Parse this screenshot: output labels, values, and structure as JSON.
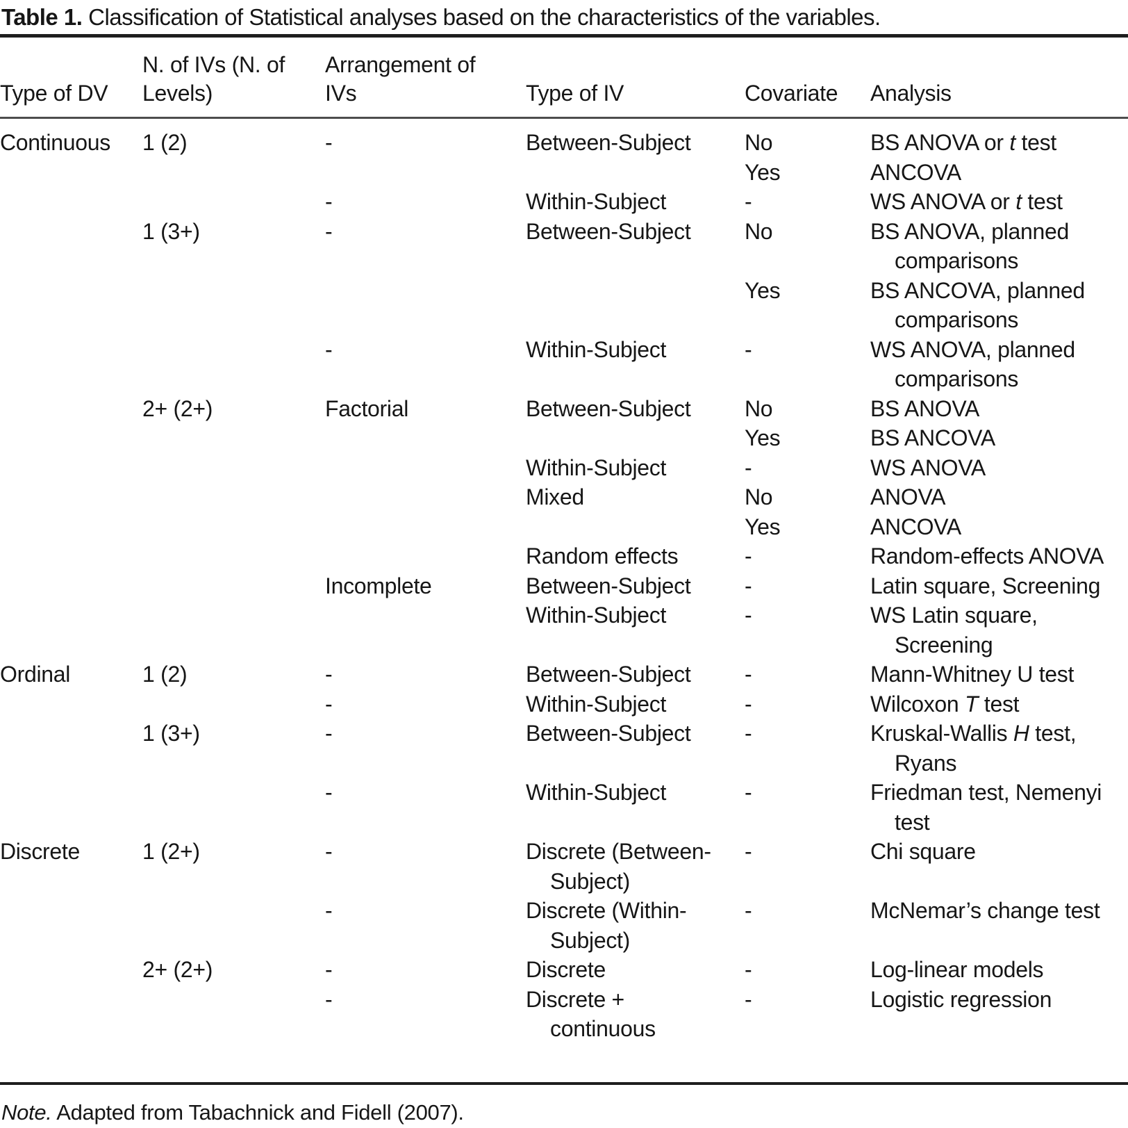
{
  "title": {
    "label": "Table 1.",
    "caption": "Classification of Statistical analyses based on the characteristics of the variables."
  },
  "table": {
    "columns": [
      "Type of DV",
      "N. of IVs (N. of\nLevels)",
      "Arrangement of\nIVs",
      "Type of IV",
      "Covariate",
      "Analysis"
    ],
    "rows": [
      {
        "dv": "Continuous",
        "n_ivs": "1 (2)",
        "arrangement": "-",
        "type_iv": "Between-Subject",
        "covariate": "No",
        "analysis": "BS ANOVA or *t* test"
      },
      {
        "dv": "",
        "n_ivs": "",
        "arrangement": "",
        "type_iv": "",
        "covariate": "Yes",
        "analysis": "ANCOVA"
      },
      {
        "dv": "",
        "n_ivs": "",
        "arrangement": "-",
        "type_iv": "Within-Subject",
        "covariate": "-",
        "analysis": "WS ANOVA or *t* test"
      },
      {
        "dv": "",
        "n_ivs": "1 (3+)",
        "arrangement": "-",
        "type_iv": "Between-Subject",
        "covariate": "No",
        "analysis": "BS ANOVA, planned\ncomparisons"
      },
      {
        "dv": "",
        "n_ivs": "",
        "arrangement": "",
        "type_iv": "",
        "covariate": "Yes",
        "analysis": "BS ANCOVA, planned\ncomparisons"
      },
      {
        "dv": "",
        "n_ivs": "",
        "arrangement": "-",
        "type_iv": "Within-Subject",
        "covariate": "-",
        "analysis": "WS ANOVA, planned\ncomparisons"
      },
      {
        "dv": "",
        "n_ivs": "2+ (2+)",
        "arrangement": "Factorial",
        "type_iv": "Between-Subject",
        "covariate": "No",
        "analysis": "BS ANOVA"
      },
      {
        "dv": "",
        "n_ivs": "",
        "arrangement": "",
        "type_iv": "",
        "covariate": "Yes",
        "analysis": "BS ANCOVA"
      },
      {
        "dv": "",
        "n_ivs": "",
        "arrangement": "",
        "type_iv": "Within-Subject",
        "covariate": "-",
        "analysis": "WS ANOVA"
      },
      {
        "dv": "",
        "n_ivs": "",
        "arrangement": "",
        "type_iv": "Mixed",
        "covariate": "No",
        "analysis": "ANOVA"
      },
      {
        "dv": "",
        "n_ivs": "",
        "arrangement": "",
        "type_iv": "",
        "covariate": "Yes",
        "analysis": "ANCOVA"
      },
      {
        "dv": "",
        "n_ivs": "",
        "arrangement": "",
        "type_iv": "Random effects",
        "covariate": "-",
        "analysis": "Random-effects ANOVA"
      },
      {
        "dv": "",
        "n_ivs": "",
        "arrangement": "Incomplete",
        "type_iv": "Between-Subject",
        "covariate": "-",
        "analysis": "Latin square, Screening"
      },
      {
        "dv": "",
        "n_ivs": "",
        "arrangement": "",
        "type_iv": "Within-Subject",
        "covariate": "-",
        "analysis": "WS Latin square,\nScreening"
      },
      {
        "dv": "Ordinal",
        "n_ivs": "1 (2)",
        "arrangement": "-",
        "type_iv": "Between-Subject",
        "covariate": "-",
        "analysis": "Mann-Whitney U test"
      },
      {
        "dv": "",
        "n_ivs": "",
        "arrangement": "-",
        "type_iv": "Within-Subject",
        "covariate": "-",
        "analysis": "Wilcoxon *T* test"
      },
      {
        "dv": "",
        "n_ivs": "1 (3+)",
        "arrangement": "-",
        "type_iv": "Between-Subject",
        "covariate": "-",
        "analysis": "Kruskal-Wallis *H* test,\nRyans"
      },
      {
        "dv": "",
        "n_ivs": "",
        "arrangement": "-",
        "type_iv": "Within-Subject",
        "covariate": "-",
        "analysis": "Friedman test, Nemenyi\ntest"
      },
      {
        "dv": "Discrete",
        "n_ivs": "1 (2+)",
        "arrangement": "-",
        "type_iv": "Discrete (Between-\nSubject)",
        "covariate": "-",
        "analysis": "Chi square"
      },
      {
        "dv": "",
        "n_ivs": "",
        "arrangement": "-",
        "type_iv": "Discrete (Within-\nSubject)",
        "covariate": "-",
        "analysis": "McNemar’s change test"
      },
      {
        "dv": "",
        "n_ivs": "2+ (2+)",
        "arrangement": "-",
        "type_iv": "Discrete",
        "covariate": "-",
        "analysis": "Log-linear models"
      },
      {
        "dv": "",
        "n_ivs": "",
        "arrangement": "-",
        "type_iv": "Discrete +\ncontinuous",
        "covariate": "-",
        "analysis": "Logistic regression"
      }
    ]
  },
  "note": {
    "label": "Note.",
    "text": "Adapted from Tabachnick and Fidell (2007)."
  }
}
